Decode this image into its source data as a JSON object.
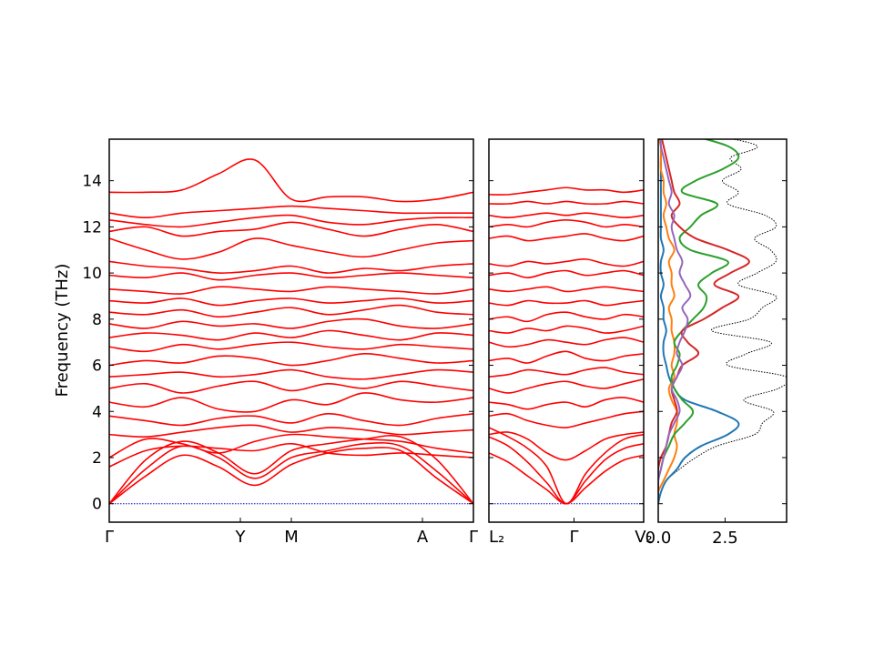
{
  "chart_data": [
    {
      "type": "line",
      "panel": "band-structure-1",
      "ylabel": "Frequency (THz)",
      "ylim": [
        -0.8,
        15.8
      ],
      "yticks": [
        0,
        2,
        4,
        6,
        8,
        10,
        12,
        14
      ],
      "xticks": [
        {
          "label": "Γ",
          "pos": 0.0
        },
        {
          "label": "Y",
          "pos": 0.36
        },
        {
          "label": "M",
          "pos": 0.5
        },
        {
          "label": "A",
          "pos": 0.86
        },
        {
          "label": "Γ",
          "pos": 1.0
        }
      ],
      "line_color": "#ff0000",
      "zero_line_color": "#0000cc",
      "notes": "dense set of phonon branches; representative branch values sampled at 11 evenly spaced k-points",
      "k_samples": 11,
      "series": [
        {
          "values": [
            0.0,
            1.2,
            2.1,
            1.6,
            0.8,
            1.7,
            2.2,
            2.4,
            2.3,
            1.1,
            0.0
          ]
        },
        {
          "values": [
            0.0,
            1.5,
            2.5,
            2.0,
            1.1,
            2.0,
            2.3,
            2.6,
            2.5,
            1.4,
            0.0
          ]
        },
        {
          "values": [
            0.0,
            1.9,
            2.7,
            2.2,
            1.3,
            2.3,
            2.6,
            2.8,
            2.9,
            1.9,
            0.0
          ]
        },
        {
          "values": [
            1.6,
            2.3,
            2.5,
            2.4,
            2.3,
            2.6,
            2.2,
            2.1,
            2.2,
            2.1,
            2.0
          ]
        },
        {
          "values": [
            2.0,
            2.8,
            2.6,
            2.2,
            2.7,
            3.0,
            2.9,
            2.8,
            2.7,
            2.4,
            2.2
          ]
        },
        {
          "values": [
            3.0,
            2.9,
            3.1,
            3.3,
            3.4,
            3.1,
            3.3,
            3.2,
            3.0,
            3.1,
            3.2
          ]
        },
        {
          "values": [
            3.8,
            3.6,
            3.4,
            3.7,
            3.8,
            3.5,
            3.9,
            3.6,
            3.4,
            3.7,
            3.9
          ]
        },
        {
          "values": [
            4.4,
            4.2,
            4.6,
            4.1,
            4.0,
            4.5,
            4.3,
            4.8,
            4.5,
            4.4,
            4.6
          ]
        },
        {
          "values": [
            5.0,
            5.2,
            4.8,
            5.1,
            5.3,
            4.9,
            5.2,
            5.0,
            5.3,
            5.1,
            4.9
          ]
        },
        {
          "values": [
            5.5,
            5.6,
            5.7,
            5.5,
            5.6,
            5.8,
            5.5,
            5.4,
            5.6,
            5.8,
            5.7
          ]
        },
        {
          "values": [
            6.0,
            6.2,
            6.1,
            6.4,
            6.3,
            6.0,
            6.2,
            6.5,
            6.3,
            6.1,
            6.2
          ]
        },
        {
          "values": [
            6.8,
            6.6,
            6.9,
            6.7,
            6.9,
            7.0,
            6.8,
            6.7,
            6.9,
            6.8,
            6.7
          ]
        },
        {
          "values": [
            7.2,
            7.4,
            7.3,
            7.1,
            7.4,
            7.2,
            7.5,
            7.3,
            7.1,
            7.4,
            7.3
          ]
        },
        {
          "values": [
            7.8,
            7.6,
            7.9,
            7.7,
            7.8,
            7.6,
            7.9,
            8.0,
            7.7,
            7.6,
            7.8
          ]
        },
        {
          "values": [
            8.3,
            8.2,
            8.4,
            8.1,
            8.3,
            8.5,
            8.2,
            8.4,
            8.6,
            8.3,
            8.2
          ]
        },
        {
          "values": [
            8.8,
            8.7,
            8.9,
            8.6,
            8.8,
            8.9,
            8.7,
            8.8,
            8.9,
            8.7,
            8.8
          ]
        },
        {
          "values": [
            9.3,
            9.2,
            9.1,
            9.4,
            9.3,
            9.2,
            9.4,
            9.3,
            9.2,
            9.1,
            9.3
          ]
        },
        {
          "values": [
            9.9,
            9.8,
            10.0,
            9.7,
            9.9,
            10.0,
            9.8,
            9.9,
            10.0,
            9.9,
            9.8
          ]
        },
        {
          "values": [
            10.5,
            10.3,
            10.2,
            10.0,
            10.1,
            10.3,
            10.0,
            10.2,
            10.1,
            10.3,
            10.4
          ]
        },
        {
          "values": [
            11.5,
            11.0,
            10.6,
            10.9,
            11.5,
            11.2,
            10.9,
            10.7,
            11.0,
            11.3,
            11.4
          ]
        },
        {
          "values": [
            11.8,
            12.0,
            11.6,
            11.8,
            11.9,
            12.2,
            11.9,
            11.6,
            11.9,
            12.1,
            11.8
          ]
        },
        {
          "values": [
            12.3,
            12.1,
            12.0,
            12.2,
            12.4,
            12.5,
            12.2,
            12.1,
            12.3,
            12.4,
            12.4
          ]
        },
        {
          "values": [
            12.6,
            12.4,
            12.6,
            12.7,
            12.8,
            12.9,
            12.8,
            12.7,
            12.6,
            12.6,
            12.6
          ]
        },
        {
          "values": [
            13.5,
            13.5,
            13.6,
            14.3,
            14.9,
            13.2,
            13.3,
            13.3,
            13.1,
            13.2,
            13.5
          ]
        }
      ]
    },
    {
      "type": "line",
      "panel": "band-structure-2",
      "ylim": [
        -0.8,
        15.8
      ],
      "xticks": [
        {
          "label": "L₂",
          "pos": 0.0
        },
        {
          "label": "Γ",
          "pos": 0.55
        },
        {
          "label": "V₂",
          "pos": 1.0
        }
      ],
      "line_color": "#ff0000",
      "zero_line_color": "#0000cc",
      "k_samples": 9,
      "series": [
        {
          "values": [
            2.2,
            1.8,
            1.2,
            0.6,
            0.0,
            0.7,
            1.4,
            1.9,
            2.1
          ]
        },
        {
          "values": [
            2.9,
            2.5,
            1.8,
            0.9,
            0.0,
            1.0,
            1.9,
            2.4,
            2.6
          ]
        },
        {
          "values": [
            3.3,
            2.9,
            2.4,
            1.6,
            0.0,
            1.3,
            2.2,
            2.8,
            3.0
          ]
        },
        {
          "values": [
            3.0,
            3.1,
            2.8,
            2.2,
            1.9,
            2.3,
            2.8,
            3.0,
            3.1
          ]
        },
        {
          "values": [
            3.8,
            3.9,
            3.6,
            3.4,
            3.3,
            3.5,
            3.7,
            3.9,
            4.0
          ]
        },
        {
          "values": [
            4.4,
            4.3,
            4.1,
            4.3,
            4.4,
            4.2,
            4.5,
            4.6,
            4.4
          ]
        },
        {
          "values": [
            5.0,
            4.8,
            5.0,
            5.2,
            5.3,
            5.1,
            5.0,
            5.2,
            5.4
          ]
        },
        {
          "values": [
            5.5,
            5.6,
            5.8,
            5.7,
            5.6,
            5.8,
            5.9,
            5.7,
            5.6
          ]
        },
        {
          "values": [
            6.2,
            6.3,
            6.1,
            6.4,
            6.6,
            6.3,
            6.2,
            6.4,
            6.5
          ]
        },
        {
          "values": [
            7.0,
            6.8,
            6.9,
            7.1,
            7.0,
            6.9,
            7.1,
            7.2,
            7.0
          ]
        },
        {
          "values": [
            7.5,
            7.4,
            7.6,
            7.5,
            7.7,
            7.6,
            7.4,
            7.5,
            7.7
          ]
        },
        {
          "values": [
            8.0,
            8.1,
            7.9,
            8.2,
            8.3,
            8.1,
            8.0,
            8.2,
            8.1
          ]
        },
        {
          "values": [
            8.7,
            8.6,
            8.8,
            8.7,
            8.7,
            8.8,
            8.6,
            8.7,
            8.8
          ]
        },
        {
          "values": [
            9.3,
            9.2,
            9.3,
            9.4,
            9.2,
            9.3,
            9.4,
            9.3,
            9.2
          ]
        },
        {
          "values": [
            9.9,
            10.0,
            9.8,
            10.0,
            10.1,
            9.9,
            10.0,
            10.1,
            9.9
          ]
        },
        {
          "values": [
            10.4,
            10.3,
            10.5,
            10.4,
            10.5,
            10.6,
            10.4,
            10.3,
            10.5
          ]
        },
        {
          "values": [
            11.5,
            11.6,
            11.4,
            11.5,
            11.6,
            11.7,
            11.5,
            11.4,
            11.6
          ]
        },
        {
          "values": [
            12.0,
            12.1,
            12.0,
            12.2,
            12.3,
            12.2,
            12.0,
            12.1,
            12.0
          ]
        },
        {
          "values": [
            12.5,
            12.4,
            12.5,
            12.6,
            12.5,
            12.6,
            12.5,
            12.4,
            12.5
          ]
        },
        {
          "values": [
            13.0,
            13.0,
            13.1,
            13.0,
            13.1,
            13.0,
            13.0,
            13.1,
            13.0
          ]
        },
        {
          "values": [
            13.4,
            13.4,
            13.5,
            13.6,
            13.7,
            13.6,
            13.6,
            13.5,
            13.6
          ]
        }
      ]
    },
    {
      "type": "line",
      "panel": "dos",
      "orientation": "horizontal",
      "xticks": [
        "0.0",
        "2.5"
      ],
      "xlim": [
        0,
        4.8
      ],
      "ylim": [
        -0.8,
        15.8
      ],
      "y_step": 0.5,
      "series": [
        {
          "color": "#000000",
          "style": "dotted",
          "values": [
            0.0,
            0.1,
            0.3,
            0.8,
            1.4,
            2.2,
            3.6,
            3.9,
            4.3,
            3.2,
            4.5,
            4.8,
            2.6,
            3.3,
            4.2,
            2.0,
            3.4,
            3.9,
            4.4,
            3.0,
            3.7,
            4.4,
            4.2,
            3.6,
            4.4,
            4.0,
            2.6,
            3.0,
            2.4,
            3.1,
            2.7,
            3.7,
            2.0,
            0.3
          ]
        },
        {
          "color": "#1f77b4",
          "style": "solid",
          "values": [
            0.0,
            0.1,
            0.3,
            0.7,
            1.0,
            1.6,
            2.6,
            3.0,
            2.2,
            1.0,
            0.6,
            0.4,
            0.3,
            0.2,
            0.2,
            0.3,
            0.2,
            0.2,
            0.1,
            0.2,
            0.1,
            0.1,
            0.2,
            0.1,
            0.1,
            0.1,
            0.1,
            0.1,
            0.1,
            0.1,
            0.1,
            0.1,
            0.0,
            0.0
          ]
        },
        {
          "color": "#ff7f0e",
          "style": "solid",
          "values": [
            0.0,
            0.0,
            0.2,
            0.4,
            0.6,
            0.7,
            0.6,
            0.7,
            0.7,
            0.5,
            0.4,
            0.6,
            0.5,
            0.6,
            0.6,
            0.5,
            0.5,
            0.4,
            0.6,
            0.5,
            0.5,
            0.4,
            0.6,
            0.4,
            0.3,
            0.2,
            0.3,
            0.2,
            0.2,
            0.1,
            0.1,
            0.1,
            0.0,
            0.0
          ]
        },
        {
          "color": "#2ca02c",
          "style": "solid",
          "values": [
            0.0,
            0.0,
            0.0,
            0.1,
            0.2,
            0.4,
            0.6,
            1.0,
            1.3,
            0.9,
            0.6,
            0.5,
            0.7,
            0.8,
            0.6,
            0.9,
            1.3,
            1.7,
            1.8,
            1.5,
            2.0,
            2.6,
            1.2,
            0.8,
            1.2,
            1.6,
            2.2,
            0.9,
            1.4,
            2.4,
            3.0,
            2.6,
            1.2,
            0.1
          ]
        },
        {
          "color": "#d62728",
          "style": "solid",
          "values": [
            0.0,
            0.0,
            0.0,
            0.0,
            0.1,
            0.3,
            0.4,
            0.5,
            0.7,
            0.6,
            0.5,
            0.7,
            0.9,
            1.5,
            1.1,
            0.9,
            1.7,
            2.4,
            3.0,
            2.1,
            2.7,
            3.4,
            2.6,
            1.4,
            0.8,
            0.5,
            0.8,
            0.6,
            0.5,
            0.4,
            0.3,
            0.2,
            0.1,
            0.0
          ]
        },
        {
          "color": "#9467bd",
          "style": "solid",
          "values": [
            0.0,
            0.0,
            0.0,
            0.1,
            0.2,
            0.3,
            0.4,
            0.6,
            0.8,
            0.7,
            0.5,
            0.7,
            0.9,
            0.7,
            0.8,
            1.0,
            1.1,
            0.9,
            1.2,
            1.0,
            0.8,
            0.9,
            0.7,
            0.6,
            0.5,
            0.6,
            0.4,
            0.5,
            0.4,
            0.3,
            0.2,
            0.1,
            0.1,
            0.0
          ]
        }
      ]
    }
  ]
}
